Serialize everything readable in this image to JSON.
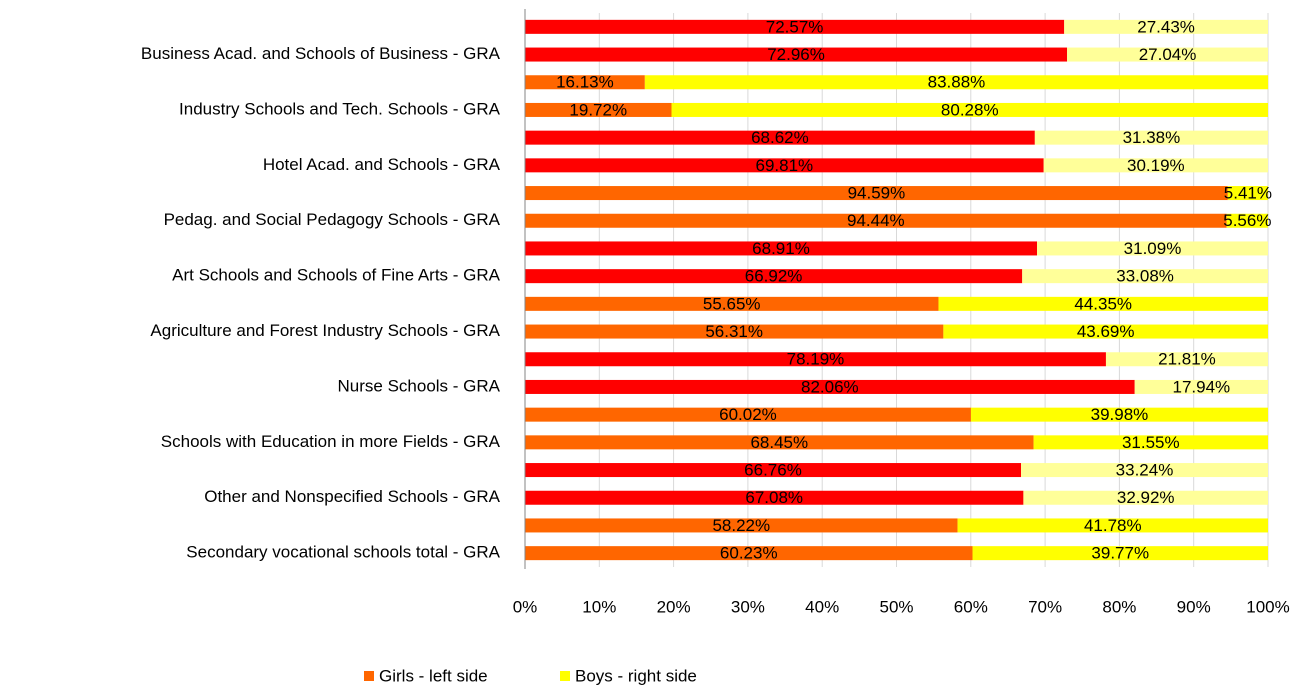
{
  "chart_data": {
    "type": "stacked-bar-horizontal",
    "categories": [
      null,
      "Business Acad. and Schools of Business - GRA",
      null,
      "Industry Schools and Tech. Schools - GRA",
      null,
      "Hotel Acad. and Schools - GRA",
      null,
      "Pedag. and Social Pedagogy Schools - GRA",
      null,
      "Art Schools and Schools of Fine Arts - GRA",
      null,
      "Agriculture and Forest Industry Schools - GRA",
      null,
      "Nurse Schools - GRA",
      null,
      "Schools with Education in more Fields - GRA",
      null,
      "Other and Nonspecified Schools - GRA",
      null,
      "Secondary vocational schools total - GRA"
    ],
    "series": [
      {
        "name": "Girls - left side",
        "color": "#ff6600",
        "colors": [
          "#ff0000",
          "#ff0000",
          "#ff6600",
          "#ff6600",
          "#ff0000",
          "#ff0000",
          "#ff6600",
          "#ff6600",
          "#ff0000",
          "#ff0000",
          "#ff6600",
          "#ff6600",
          "#ff0000",
          "#ff0000",
          "#ff6600",
          "#ff6600",
          "#ff0000",
          "#ff0000",
          "#ff6600",
          "#ff6600"
        ],
        "values": [
          72.57,
          72.96,
          16.13,
          19.72,
          68.62,
          69.81,
          94.59,
          94.44,
          68.91,
          66.92,
          55.65,
          56.31,
          78.19,
          82.06,
          60.02,
          68.45,
          66.76,
          67.08,
          58.22,
          60.23
        ],
        "value_labels": [
          "72.57%",
          "72.96%",
          "16.13%",
          "19.72%",
          "68.62%",
          "69.81%",
          "94.59%",
          "94.44%",
          "68.91%",
          "66.92%",
          "55.65%",
          "56.31%",
          "78.19%",
          "82.06%",
          "60.02%",
          "68.45%",
          "66.76%",
          "67.08%",
          "58.22%",
          "60.23%"
        ]
      },
      {
        "name": "Boys - right side",
        "color": "#ffff00",
        "colors": [
          "#ffff99",
          "#ffff99",
          "#ffff00",
          "#ffff00",
          "#ffff99",
          "#ffff99",
          "#ffff00",
          "#ffff00",
          "#ffff99",
          "#ffff99",
          "#ffff00",
          "#ffff00",
          "#ffff99",
          "#ffff99",
          "#ffff00",
          "#ffff00",
          "#ffff99",
          "#ffff99",
          "#ffff00",
          "#ffff00"
        ],
        "values": [
          27.43,
          27.04,
          83.88,
          80.28,
          31.38,
          30.19,
          5.41,
          5.56,
          31.09,
          33.08,
          44.35,
          43.69,
          21.81,
          17.94,
          39.98,
          31.55,
          33.24,
          32.92,
          41.78,
          39.77
        ],
        "value_labels": [
          "27.43%",
          "27.04%",
          "83.88%",
          "80.28%",
          "31.38%",
          "30.19%",
          "5.41%",
          "5.56%",
          "31.09%",
          "33.08%",
          "44.35%",
          "43.69%",
          "21.81%",
          "17.94%",
          "39.98%",
          "31.55%",
          "33.24%",
          "32.92%",
          "41.78%",
          "39.77%"
        ]
      }
    ],
    "xlim": [
      0,
      100
    ],
    "xticks": [
      {
        "value": 0,
        "label": "0%"
      },
      {
        "value": 10,
        "label": "10%"
      },
      {
        "value": 20,
        "label": "20%"
      },
      {
        "value": 30,
        "label": "30%"
      },
      {
        "value": 40,
        "label": "40%"
      },
      {
        "value": 50,
        "label": "50%"
      },
      {
        "value": 60,
        "label": "60%"
      },
      {
        "value": 70,
        "label": "70%"
      },
      {
        "value": 80,
        "label": "80%"
      },
      {
        "value": 90,
        "label": "90%"
      },
      {
        "value": 100,
        "label": "100%"
      }
    ],
    "grid": true,
    "legend": "bottom"
  }
}
